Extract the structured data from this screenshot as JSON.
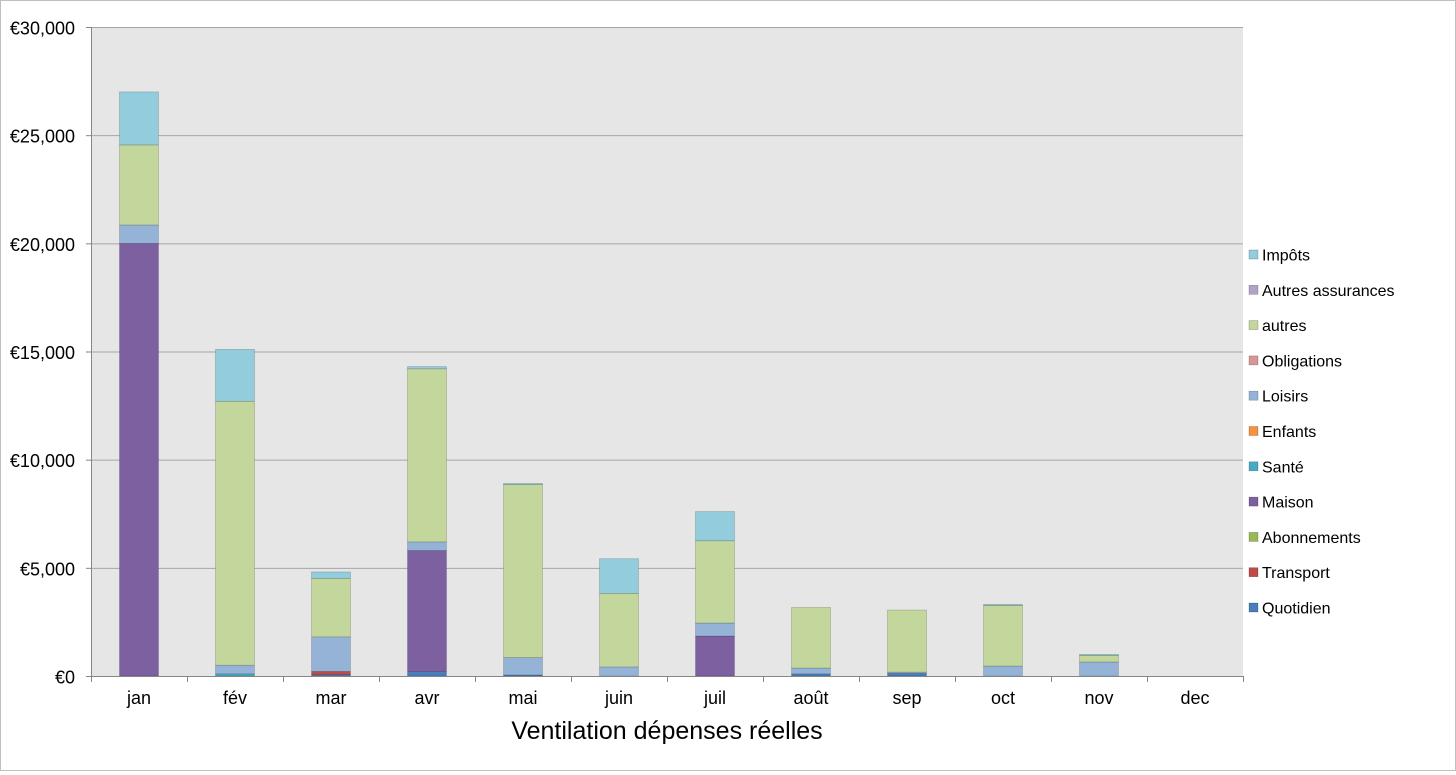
{
  "chart_data": {
    "type": "bar",
    "stacked": true,
    "title": "",
    "xlabel": "Ventilation dépenses réelles",
    "ylabel": "",
    "ylim": [
      0,
      30000
    ],
    "yticks": [
      0,
      5000,
      10000,
      15000,
      20000,
      25000,
      30000
    ],
    "ytick_labels": [
      "€0",
      "€5,000",
      "€10,000",
      "€15,000",
      "€20,000",
      "€25,000",
      "€30,000"
    ],
    "grid": true,
    "legend_position": "right",
    "categories": [
      "jan",
      "fév",
      "mar",
      "avr",
      "mai",
      "juin",
      "juil",
      "août",
      "sep",
      "oct",
      "nov",
      "dec"
    ],
    "series": [
      {
        "name": "Quotidien",
        "color": "#4a7ebb",
        "values": [
          0,
          0,
          60,
          200,
          50,
          0,
          0,
          100,
          120,
          0,
          0,
          0
        ]
      },
      {
        "name": "Transport",
        "color": "#be4b48",
        "values": [
          0,
          0,
          150,
          0,
          0,
          0,
          0,
          0,
          0,
          0,
          0,
          0
        ]
      },
      {
        "name": "Abonnements",
        "color": "#98b954",
        "values": [
          0,
          0,
          0,
          0,
          0,
          0,
          0,
          0,
          0,
          0,
          0,
          0
        ]
      },
      {
        "name": "Maison",
        "color": "#7d60a0",
        "values": [
          20000,
          0,
          0,
          5600,
          0,
          0,
          1850,
          0,
          0,
          0,
          0,
          0
        ]
      },
      {
        "name": "Santé",
        "color": "#46aac5",
        "values": [
          0,
          100,
          0,
          0,
          0,
          0,
          0,
          0,
          0,
          0,
          0,
          0
        ]
      },
      {
        "name": "Enfants",
        "color": "#f69240",
        "values": [
          0,
          0,
          0,
          0,
          0,
          0,
          0,
          0,
          0,
          0,
          0,
          0
        ]
      },
      {
        "name": "Loisirs",
        "color": "#95b3d7",
        "values": [
          850,
          400,
          1600,
          400,
          800,
          420,
          600,
          270,
          60,
          460,
          650,
          0
        ]
      },
      {
        "name": "Obligations",
        "color": "#d99694",
        "values": [
          0,
          0,
          0,
          0,
          0,
          0,
          0,
          0,
          0,
          0,
          0,
          0
        ]
      },
      {
        "name": "autres",
        "color": "#c3d69b",
        "values": [
          3700,
          12200,
          2700,
          8000,
          8000,
          3400,
          3800,
          2800,
          2870,
          2800,
          300,
          0
        ]
      },
      {
        "name": "Autres assurances",
        "color": "#b3a2c7",
        "values": [
          0,
          0,
          0,
          0,
          0,
          0,
          0,
          0,
          0,
          0,
          0,
          0
        ]
      },
      {
        "name": "Impôts",
        "color": "#93cddd",
        "values": [
          2450,
          2400,
          300,
          100,
          50,
          1600,
          1350,
          0,
          0,
          50,
          50,
          0
        ]
      }
    ],
    "plot_background": "#e6e6e6",
    "grid_color": "#a6a6a6"
  }
}
